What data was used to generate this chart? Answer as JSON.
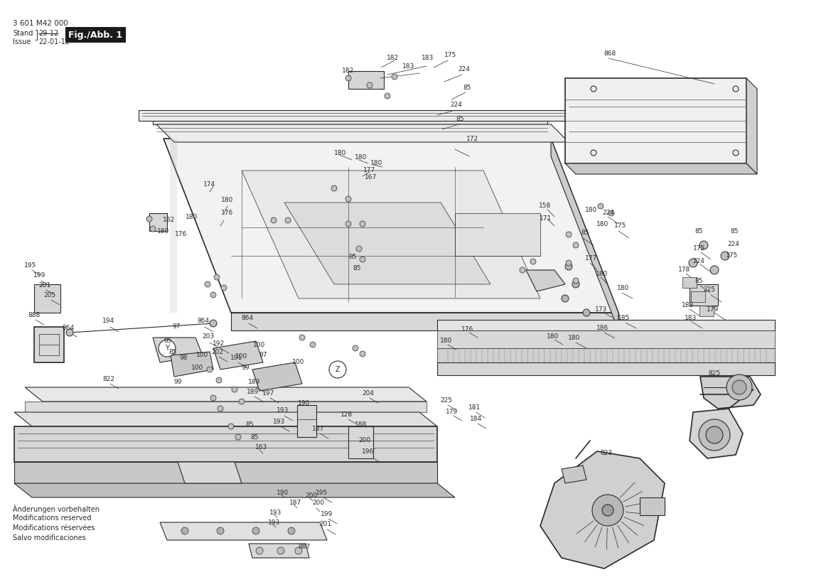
{
  "bg_color": "#ffffff",
  "line_color": "#2a2a2a",
  "fig_width": 11.69,
  "fig_height": 8.26,
  "header": {
    "model": "3 601 M42 000",
    "stand_label": "Stand",
    "stand_date_old": "29-12",
    "issue_label": "Issue",
    "issue_date": "22-01-12",
    "fig_label": "Fig./Abb. 1",
    "fig_label_bg": "#1a1a1a",
    "fig_label_fg": "#ffffff"
  },
  "footer": {
    "lines": [
      "Änderungen vorbehalten",
      "Modifications reserved",
      "Modifications réservées",
      "Salvo modificaciones"
    ]
  }
}
